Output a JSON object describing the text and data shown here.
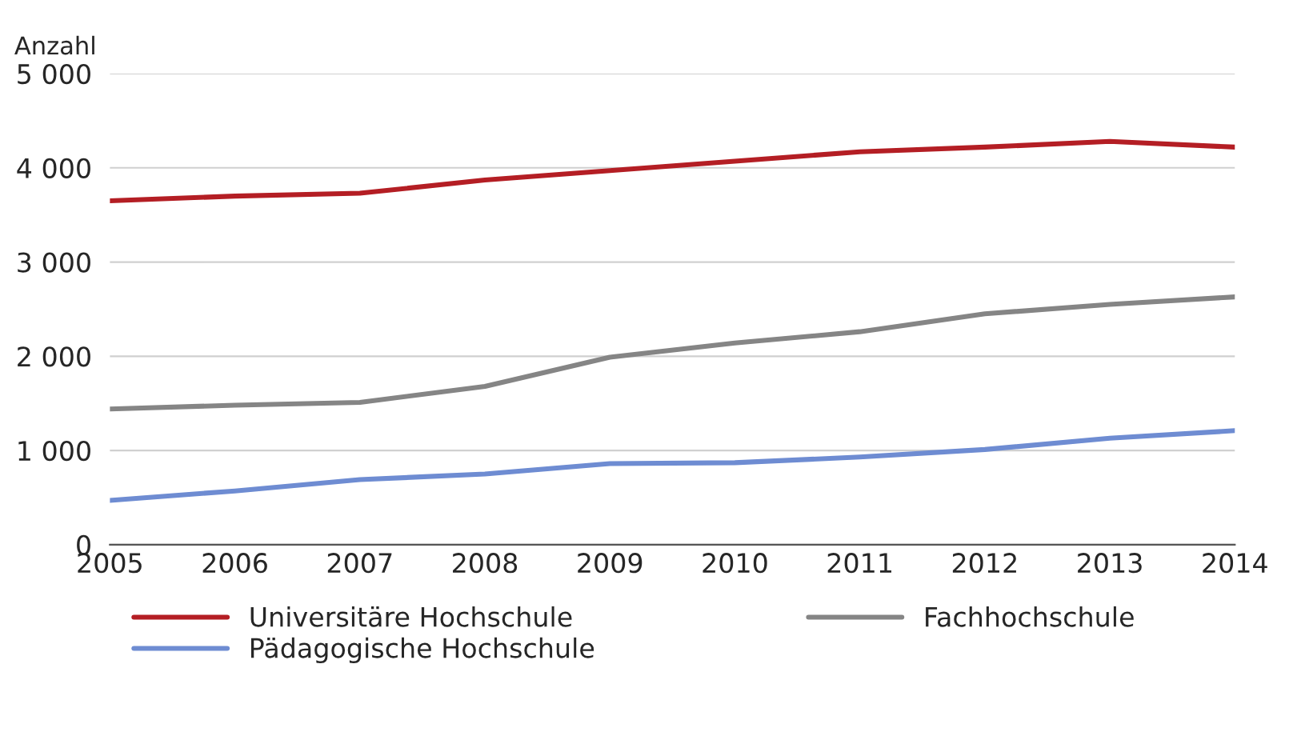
{
  "chart_data": {
    "type": "line",
    "ylabel": "Anzahl",
    "x": [
      2005,
      2006,
      2007,
      2008,
      2009,
      2010,
      2011,
      2012,
      2013,
      2014
    ],
    "series": [
      {
        "name": "Universitäre Hochschule",
        "color": "#b41e24",
        "values": [
          3650,
          3700,
          3730,
          3870,
          3970,
          4070,
          4170,
          4220,
          4280,
          4220
        ]
      },
      {
        "name": "Fachhochschule",
        "color": "#858585",
        "values": [
          1440,
          1480,
          1510,
          1680,
          1990,
          2140,
          2260,
          2450,
          2550,
          2630
        ]
      },
      {
        "name": "Pädagogische Hochschule",
        "color": "#6e8cd2",
        "values": [
          470,
          570,
          690,
          750,
          860,
          870,
          930,
          1010,
          1130,
          1210
        ]
      }
    ],
    "xlim": [
      2005,
      2014
    ],
    "xticks": [
      2005,
      2006,
      2007,
      2008,
      2009,
      2010,
      2011,
      2012,
      2013,
      2014
    ],
    "ylim": [
      0,
      5000
    ],
    "yticks": [
      0,
      {
        "value": 1000,
        "label": "1 000"
      },
      {
        "value": 2000,
        "label": "2 000"
      },
      {
        "value": 3000,
        "label": "3 000"
      },
      {
        "value": 4000,
        "label": "4 000"
      },
      {
        "value": 5000,
        "label": "5 000"
      }
    ],
    "grid": "y",
    "legend": "bottom",
    "marker": "none",
    "line_style": "solid"
  }
}
